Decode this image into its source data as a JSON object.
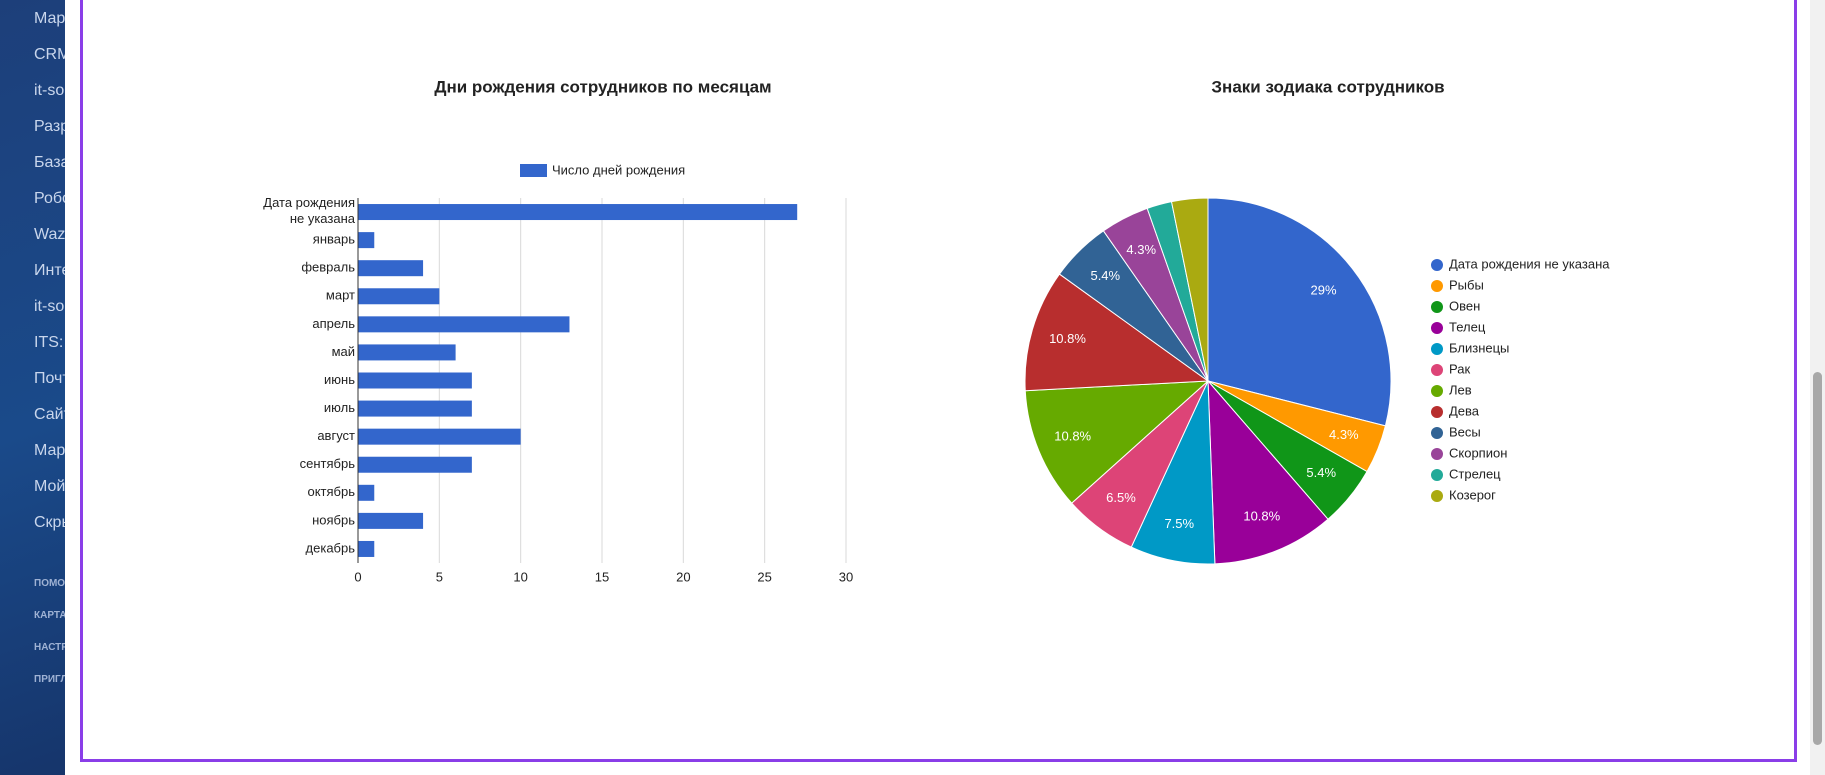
{
  "sidebar": {
    "items": [
      "Мар",
      "CRM",
      "it-so",
      "Разр",
      "База",
      "Робо",
      "Wazz",
      "Инте",
      "it-so",
      "ITS: T",
      "Почт",
      "Сайт",
      "Мар",
      "Мой",
      "Скрь"
    ],
    "small_items": [
      "ПОМО",
      "КАРТА",
      "НАСТР",
      "ПРИГЛ"
    ]
  },
  "chart_data": [
    {
      "type": "bar",
      "orientation": "horizontal",
      "title": "Дни рождения сотрудников по месяцам",
      "categories": [
        "Дата рождения не указана",
        "январь",
        "февраль",
        "март",
        "апрель",
        "май",
        "июнь",
        "июль",
        "август",
        "сентябрь",
        "октябрь",
        "ноябрь",
        "декабрь"
      ],
      "series": [
        {
          "name": "Число дней рождения",
          "color": "#3366cc",
          "values": [
            27,
            1,
            4,
            5,
            13,
            6,
            7,
            7,
            10,
            7,
            1,
            4,
            1
          ]
        }
      ],
      "xlim": [
        0,
        30
      ],
      "xticks": [
        0,
        5,
        10,
        15,
        20,
        25,
        30
      ],
      "grid": true,
      "legend": "top"
    },
    {
      "type": "pie",
      "title": "Знаки зодиака сотрудников",
      "categories": [
        "Дата рождения не указана",
        "Рыбы",
        "Овен",
        "Телец",
        "Близнецы",
        "Рак",
        "Лев",
        "Дева",
        "Весы",
        "Скорпион",
        "Стрелец",
        "Козерог"
      ],
      "values": [
        29,
        4.3,
        5.4,
        10.8,
        7.5,
        6.5,
        10.8,
        10.8,
        5.4,
        4.3,
        2.2,
        3.2
      ],
      "value_labels": [
        "29%",
        "4.3%",
        "5.4%",
        "10.8%",
        "7.5%",
        "6.5%",
        "10.8%",
        "10.8%",
        "5.4%",
        "4.3%",
        null,
        null
      ],
      "colors": [
        "#3366cc",
        "#ff9900",
        "#109618",
        "#990099",
        "#0099c6",
        "#dd4477",
        "#66aa00",
        "#b82e2e",
        "#316395",
        "#994499",
        "#22aa99",
        "#aaaa11"
      ],
      "legend": "right"
    }
  ]
}
